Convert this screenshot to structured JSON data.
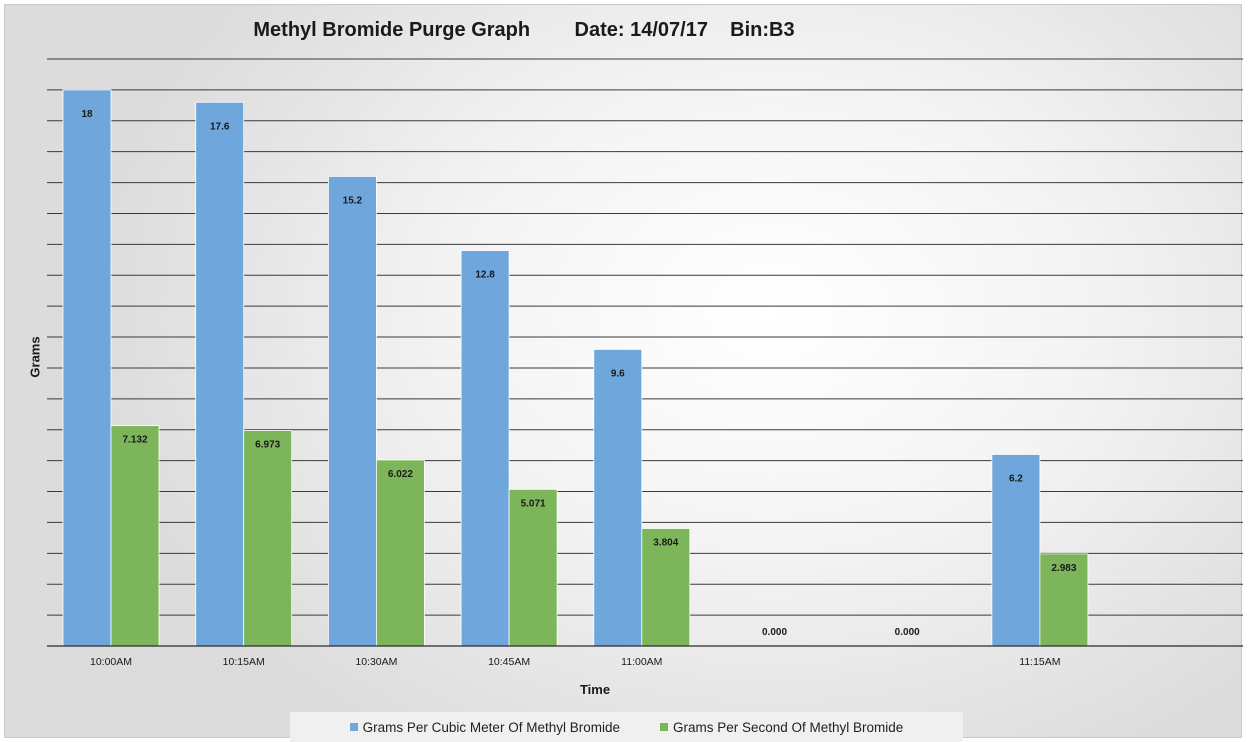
{
  "chart_data": {
    "type": "bar",
    "title": "Methyl Bromide Purge Graph        Date: 14/07/17    Bin:B3",
    "xlabel": "Time",
    "ylabel": "Grams",
    "categories": [
      "10:00AM",
      "10:15AM",
      "10:30AM",
      "10:45AM",
      "11:00AM",
      "",
      "",
      "11:15AM"
    ],
    "series": [
      {
        "name": "Grams Per Cubic Meter Of Methyl Bromide",
        "color": "#6fa6db",
        "values": [
          18,
          17.6,
          15.2,
          12.8,
          9.6,
          null,
          null,
          6.2
        ],
        "labels": [
          "18",
          "17.6",
          "15.2",
          "12.8",
          "9.6",
          "",
          "",
          "6.2"
        ]
      },
      {
        "name": "Grams Per Second Of Methyl Bromide",
        "color": "#7db55a",
        "values": [
          7.132,
          6.973,
          6.022,
          5.071,
          3.804,
          null,
          null,
          2.983
        ],
        "labels": [
          "7.132",
          "6.973",
          "6.022",
          "5.071",
          "3.804",
          "",
          "",
          "2.983"
        ]
      }
    ],
    "empty_slot_labels": [
      "",
      "",
      "",
      "",
      "",
      "0.000",
      "0.000",
      ""
    ],
    "ylim": [
      0,
      19
    ],
    "grid": true,
    "legend_position": "bottom"
  }
}
